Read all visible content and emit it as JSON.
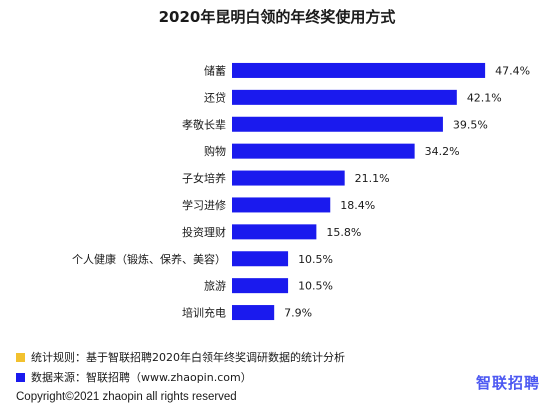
{
  "chart_data": {
    "type": "bar",
    "orientation": "horizontal",
    "title": "2020年昆明白领的年终奖使用方式",
    "categories": [
      "储蓄",
      "还贷",
      "孝敬长辈",
      "购物",
      "子女培养",
      "学习进修",
      "投资理财",
      "个人健康（锻炼、保养、美容）",
      "旅游",
      "培训充电"
    ],
    "values": [
      47.4,
      42.1,
      39.5,
      34.2,
      21.1,
      18.4,
      15.8,
      10.5,
      10.5,
      7.9
    ],
    "value_labels": [
      "47.4%",
      "42.1%",
      "39.5%",
      "34.2%",
      "21.1%",
      "18.4%",
      "15.8%",
      "10.5%",
      "10.5%",
      "7.9%"
    ],
    "unit": "%",
    "xlim": [
      0,
      50
    ],
    "grid": false,
    "bar_color": "#1a1aee"
  },
  "notes": {
    "rule": {
      "text": "统计规则：基于智联招聘2020年白领年终奖调研数据的统计分析",
      "color": "#f2c12e"
    },
    "source": {
      "text": "数据来源：智联招聘（www.zhaopin.com）",
      "color": "#1a1aee"
    }
  },
  "footer": {
    "copyright": "Copyright©2021 zhaopin all rights reserved"
  },
  "logo": {
    "text": "智联招聘"
  }
}
